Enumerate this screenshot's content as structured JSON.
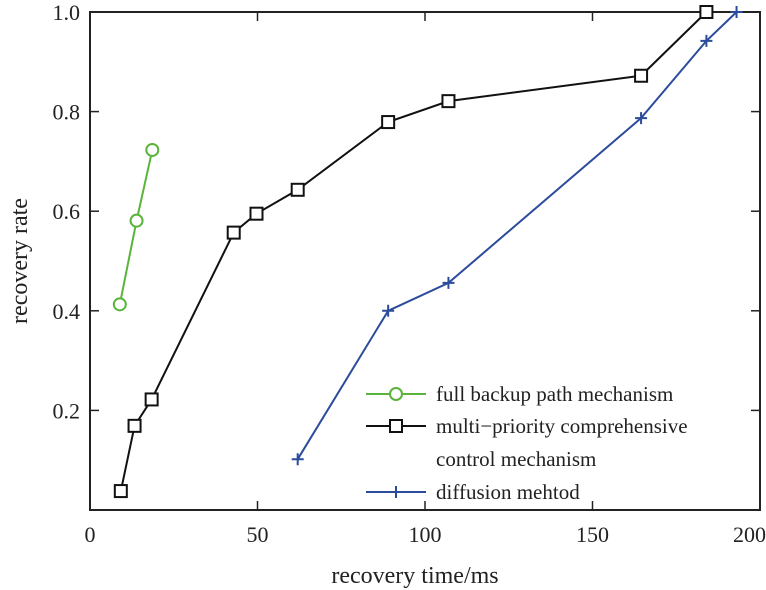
{
  "chart_data": {
    "type": "line",
    "title": "",
    "xlabel": "recovery time/ms",
    "ylabel": "recovery rate",
    "xlim": [
      0,
      200
    ],
    "ylim": [
      0,
      1.0
    ],
    "xticks": [
      0,
      50,
      100,
      150,
      200
    ],
    "yticks": [
      0.2,
      0.4,
      0.6,
      0.8,
      1.0
    ],
    "xtick_labels": [
      "0",
      "50",
      "100",
      "150",
      "200"
    ],
    "ytick_labels": [
      "0.2",
      "0.4",
      "0.6",
      "0.8",
      "1.0"
    ],
    "grid": false,
    "legend_position": "bottom-right",
    "series": [
      {
        "name": "full backup path mechanism",
        "color": "#5ab43c",
        "marker": "circle",
        "x": [
          8.9,
          13.9,
          18.6
        ],
        "y": [
          0.413,
          0.581,
          0.723
        ]
      },
      {
        "name": "multi−priority comprehensive control mechanism",
        "name_lines": [
          "multi−priority comprehensive",
          "control mechanism"
        ],
        "color": "#111111",
        "marker": "square",
        "x": [
          9.2,
          13.3,
          18.4,
          42.9,
          49.7,
          62.0,
          89.0,
          107.0,
          164.5,
          184.0
        ],
        "y": [
          0.038,
          0.169,
          0.222,
          0.557,
          0.595,
          0.643,
          0.779,
          0.821,
          0.872,
          1.0
        ]
      },
      {
        "name": "diffusion mehtod",
        "color": "#2b4b9b",
        "marker": "plus",
        "x": [
          62.0,
          89.0,
          107.0,
          164.5,
          184.0,
          193.0
        ],
        "y": [
          0.102,
          0.4,
          0.456,
          0.787,
          0.942,
          1.0
        ]
      }
    ]
  }
}
